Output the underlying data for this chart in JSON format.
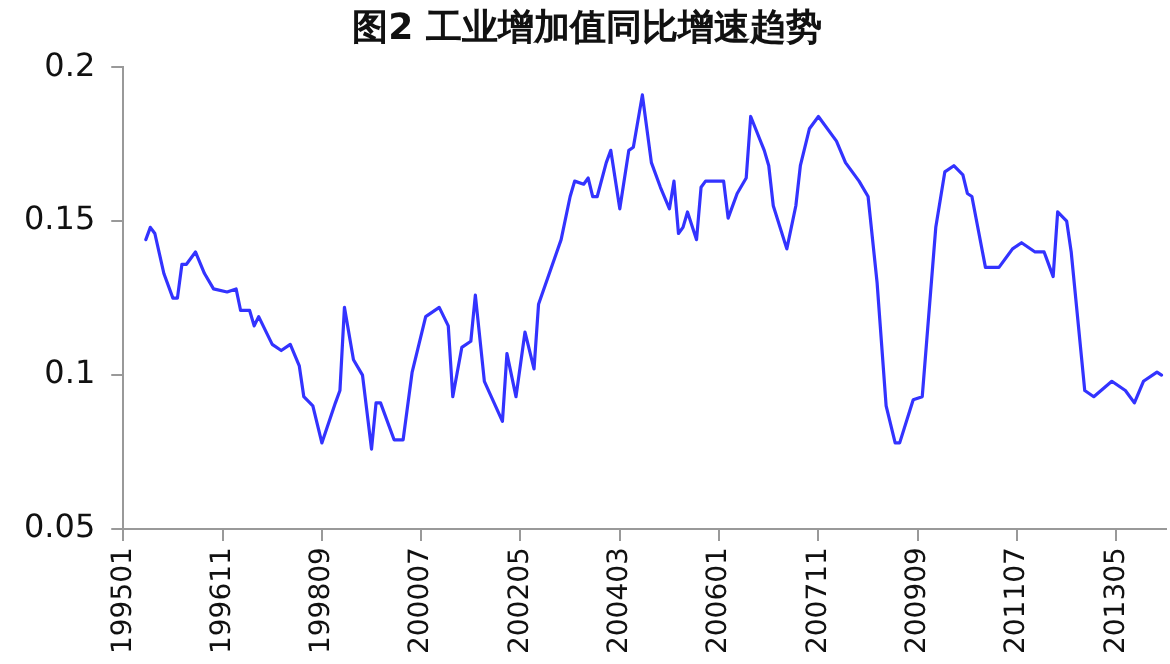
{
  "chart_data": {
    "type": "line",
    "title": "图2 工业增加值同比增速趋势",
    "x": [
      "1995-06",
      "1995-07",
      "1995-08",
      "1995-10",
      "1995-12",
      "1996-01",
      "1996-02",
      "1996-03",
      "1996-05",
      "1996-07",
      "1996-09",
      "1996-12",
      "1997-02",
      "1997-03",
      "1997-05",
      "1997-06",
      "1997-07",
      "1997-10",
      "1997-12",
      "1998-02",
      "1998-04",
      "1998-05",
      "1998-07",
      "1998-09",
      "1998-12",
      "1999-01",
      "1999-02",
      "1999-04",
      "1999-06",
      "1999-08",
      "1999-09",
      "1999-10",
      "2000-01",
      "2000-03",
      "2000-05",
      "2000-08",
      "2000-11",
      "2001-01",
      "2001-02",
      "2001-04",
      "2001-06",
      "2001-07",
      "2001-09",
      "2002-01",
      "2002-02",
      "2002-04",
      "2002-06",
      "2002-08",
      "2002-09",
      "2003-02",
      "2003-04",
      "2003-05",
      "2003-07",
      "2003-08",
      "2003-09",
      "2003-10",
      "2003-12",
      "2004-01",
      "2004-03",
      "2004-05",
      "2004-06",
      "2004-08",
      "2004-10",
      "2004-12",
      "2005-02",
      "2005-03",
      "2005-04",
      "2005-05",
      "2005-06",
      "2005-08",
      "2005-09",
      "2005-10",
      "2006-02",
      "2006-03",
      "2006-05",
      "2006-07",
      "2006-08",
      "2006-11",
      "2006-12",
      "2007-01",
      "2007-04",
      "2007-06",
      "2007-07",
      "2007-09",
      "2007-11",
      "2008-03",
      "2008-05",
      "2008-08",
      "2008-10",
      "2008-12",
      "2009-02",
      "2009-04",
      "2009-05",
      "2009-08",
      "2009-10",
      "2010-01",
      "2010-03",
      "2010-05",
      "2010-07",
      "2010-08",
      "2010-09",
      "2010-12",
      "2011-03",
      "2011-06",
      "2011-08",
      "2011-11",
      "2012-01",
      "2012-03",
      "2012-04",
      "2012-06",
      "2012-07",
      "2012-10",
      "2012-12",
      "2013-04",
      "2013-07",
      "2013-09",
      "2013-11",
      "2014-02",
      "2014-03"
    ],
    "series": [
      {
        "color": "#3333ff",
        "values": [
          0.144,
          0.148,
          0.146,
          0.133,
          0.125,
          0.125,
          0.136,
          0.136,
          0.14,
          0.133,
          0.128,
          0.127,
          0.128,
          0.121,
          0.121,
          0.116,
          0.119,
          0.11,
          0.108,
          0.11,
          0.103,
          0.093,
          0.09,
          0.078,
          0.091,
          0.095,
          0.122,
          0.105,
          0.1,
          0.076,
          0.091,
          0.091,
          0.079,
          0.079,
          0.101,
          0.119,
          0.122,
          0.116,
          0.093,
          0.109,
          0.111,
          0.126,
          0.098,
          0.085,
          0.107,
          0.093,
          0.114,
          0.102,
          0.123,
          0.144,
          0.158,
          0.163,
          0.162,
          0.164,
          0.158,
          0.158,
          0.169,
          0.173,
          0.154,
          0.173,
          0.174,
          0.191,
          0.169,
          0.161,
          0.154,
          0.163,
          0.146,
          0.148,
          0.153,
          0.144,
          0.161,
          0.163,
          0.163,
          0.151,
          0.159,
          0.164,
          0.184,
          0.173,
          0.168,
          0.155,
          0.141,
          0.155,
          0.168,
          0.18,
          0.184,
          0.176,
          0.169,
          0.163,
          0.158,
          0.13,
          0.09,
          0.078,
          0.078,
          0.092,
          0.093,
          0.148,
          0.166,
          0.168,
          0.165,
          0.159,
          0.158,
          0.135,
          0.135,
          0.141,
          0.143,
          0.14,
          0.14,
          0.132,
          0.153,
          0.15,
          0.14,
          0.095,
          0.093,
          0.098,
          0.095,
          0.091,
          0.098,
          0.101,
          0.1
        ]
      }
    ],
    "xlim": [
      "1995-01",
      "2014-04"
    ],
    "xticks": [
      {
        "value": "1995-01",
        "label": "199501"
      },
      {
        "value": "1996-11",
        "label": "199611"
      },
      {
        "value": "1998-09",
        "label": "199809"
      },
      {
        "value": "2000-07",
        "label": "200007"
      },
      {
        "value": "2002-05",
        "label": "200205"
      },
      {
        "value": "2004-03",
        "label": "200403"
      },
      {
        "value": "2006-01",
        "label": "200601"
      },
      {
        "value": "2007-11",
        "label": "200711"
      },
      {
        "value": "2009-09",
        "label": "200909"
      },
      {
        "value": "2011-07",
        "label": "201107"
      },
      {
        "value": "2013-05",
        "label": "201305"
      }
    ],
    "ylim": [
      0.05,
      0.2
    ],
    "yticks": [
      0.05,
      0.1,
      0.15,
      0.2
    ],
    "grid": false,
    "legend": false,
    "marker": "none",
    "line_style": "solid"
  }
}
